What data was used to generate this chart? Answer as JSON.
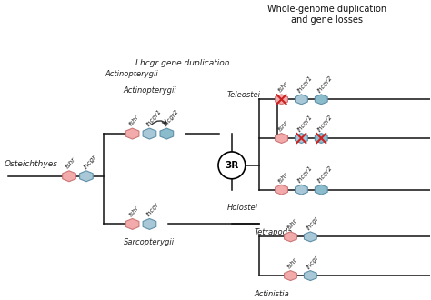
{
  "title": "Whole-genome duplication\nand gene losses",
  "bg_color": "#ffffff",
  "pink_color": "#f2aaaa",
  "pink_border": "#cc7777",
  "blue_color": "#a8c8d8",
  "blue_border": "#6090a8",
  "blue2_color": "#8bbccc",
  "line_color": "#111111",
  "red_x_color": "#cc2222",
  "taxa": {
    "osteichthyes": "Osteichthyes",
    "actinopterygii": "Actinopterygii",
    "sarcopterygii": "Sarcopterygii",
    "teleostei": "Teleostei",
    "holostei": "Holostei",
    "tetrapoda": "Tetrapoda",
    "actinistia": "Actinistia"
  },
  "annotation_lhcgr_dup": "Lhcgr gene duplication",
  "annotation_3R": "3R"
}
